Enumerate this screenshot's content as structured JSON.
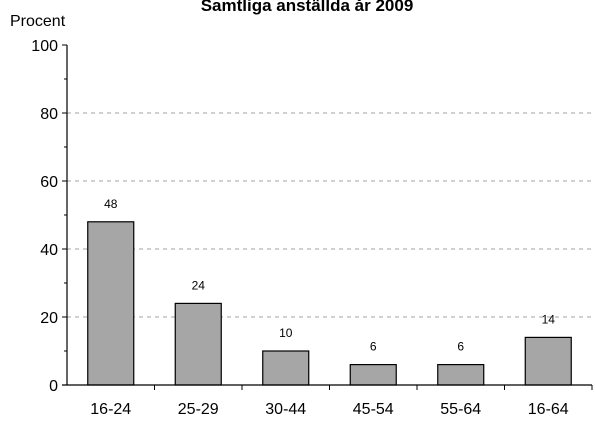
{
  "chart_data": {
    "type": "bar",
    "title": "Samtliga anställda år 2009",
    "xlabel": "",
    "ylabel": "Procent",
    "categories": [
      "16-24",
      "25-29",
      "30-44",
      "45-54",
      "55-64",
      "16-64"
    ],
    "values": [
      48,
      24,
      10,
      6,
      6,
      14
    ],
    "value_labels": [
      "48",
      "24",
      "10",
      "6",
      "6",
      "14"
    ],
    "ylim": [
      0,
      100
    ],
    "yticks": [
      0,
      20,
      40,
      60,
      80,
      100
    ],
    "grid": true,
    "legend": "none",
    "colors": {
      "bar_fill": "#a6a6a6",
      "bar_stroke": "#000000",
      "grid": "#a0a0a0",
      "axis": "#000000"
    }
  }
}
